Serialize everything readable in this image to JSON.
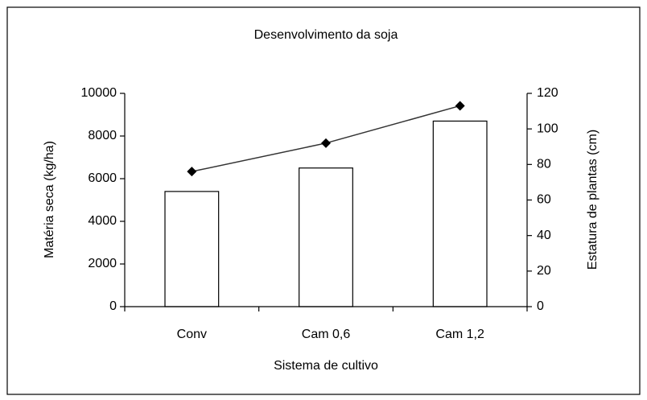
{
  "chart_data": {
    "type": "bar",
    "title": "Desenvolvimento da soja",
    "xlabel": "Sistema de cultivo",
    "ylabel": "Matéria seca (kg/ha)",
    "y2label": "Estatura de plantas (cm)",
    "categories": [
      "Conv",
      "Cam 0,6",
      "Cam 1,2"
    ],
    "series": [
      {
        "type": "bar",
        "color": "#ffffff",
        "values": [
          5400,
          6500,
          8700
        ]
      },
      {
        "type": "line",
        "color": "#333333",
        "axis": "y2",
        "values": [
          76,
          92,
          113
        ]
      }
    ],
    "ylim": [
      0,
      10000
    ],
    "yticks": [
      0,
      2000,
      4000,
      6000,
      8000,
      10000
    ],
    "y2lim": [
      0,
      120
    ],
    "y2ticks": [
      0,
      20,
      40,
      60,
      80,
      100,
      120
    ]
  }
}
